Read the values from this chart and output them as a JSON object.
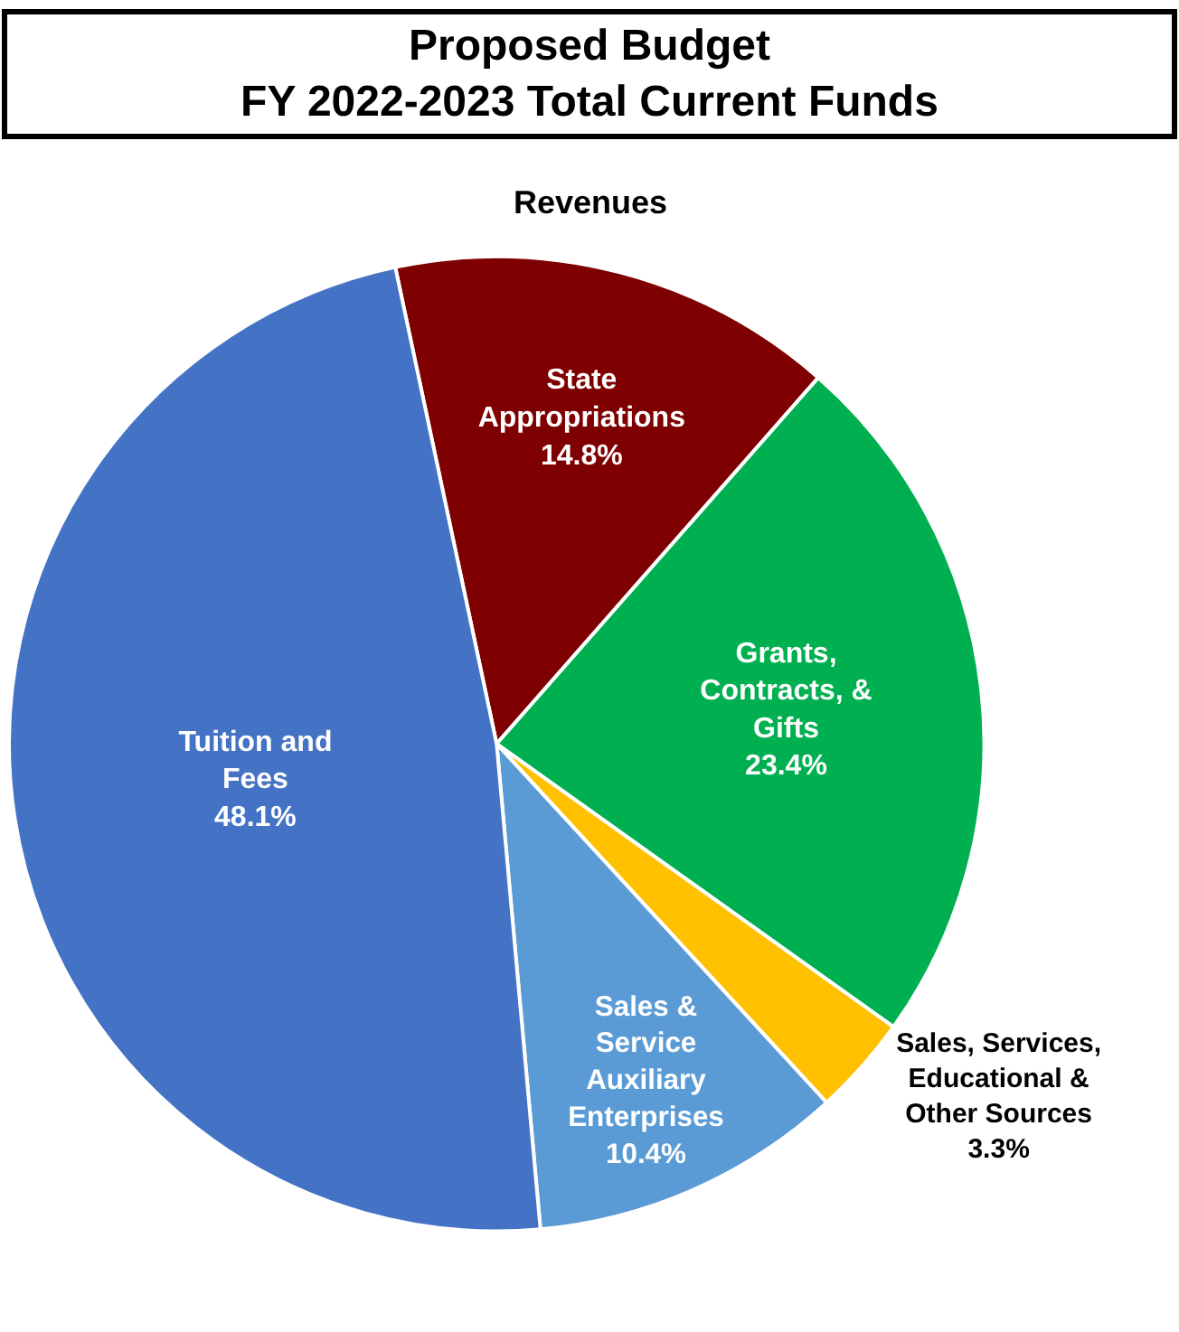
{
  "chart_data": {
    "type": "pie",
    "title": "Proposed Budget\nFY 2022-2023 Total Current Funds",
    "subtitle": "Revenues",
    "categories": [
      "State Appropriations",
      "Grants, Contracts, & Gifts",
      "Sales, Services, Educational & Other Sources",
      "Sales & Service Auxiliary Enterprises",
      "Tuition and Fees"
    ],
    "values": [
      14.8,
      23.4,
      3.3,
      10.4,
      48.1
    ],
    "colors": [
      "#7f0000",
      "#00b050",
      "#ffc000",
      "#5b9bd5",
      "#4472c4"
    ],
    "value_labels": [
      "14.8%",
      "23.4%",
      "3.3%",
      "10.4%",
      "48.1%"
    ],
    "legend": false
  }
}
